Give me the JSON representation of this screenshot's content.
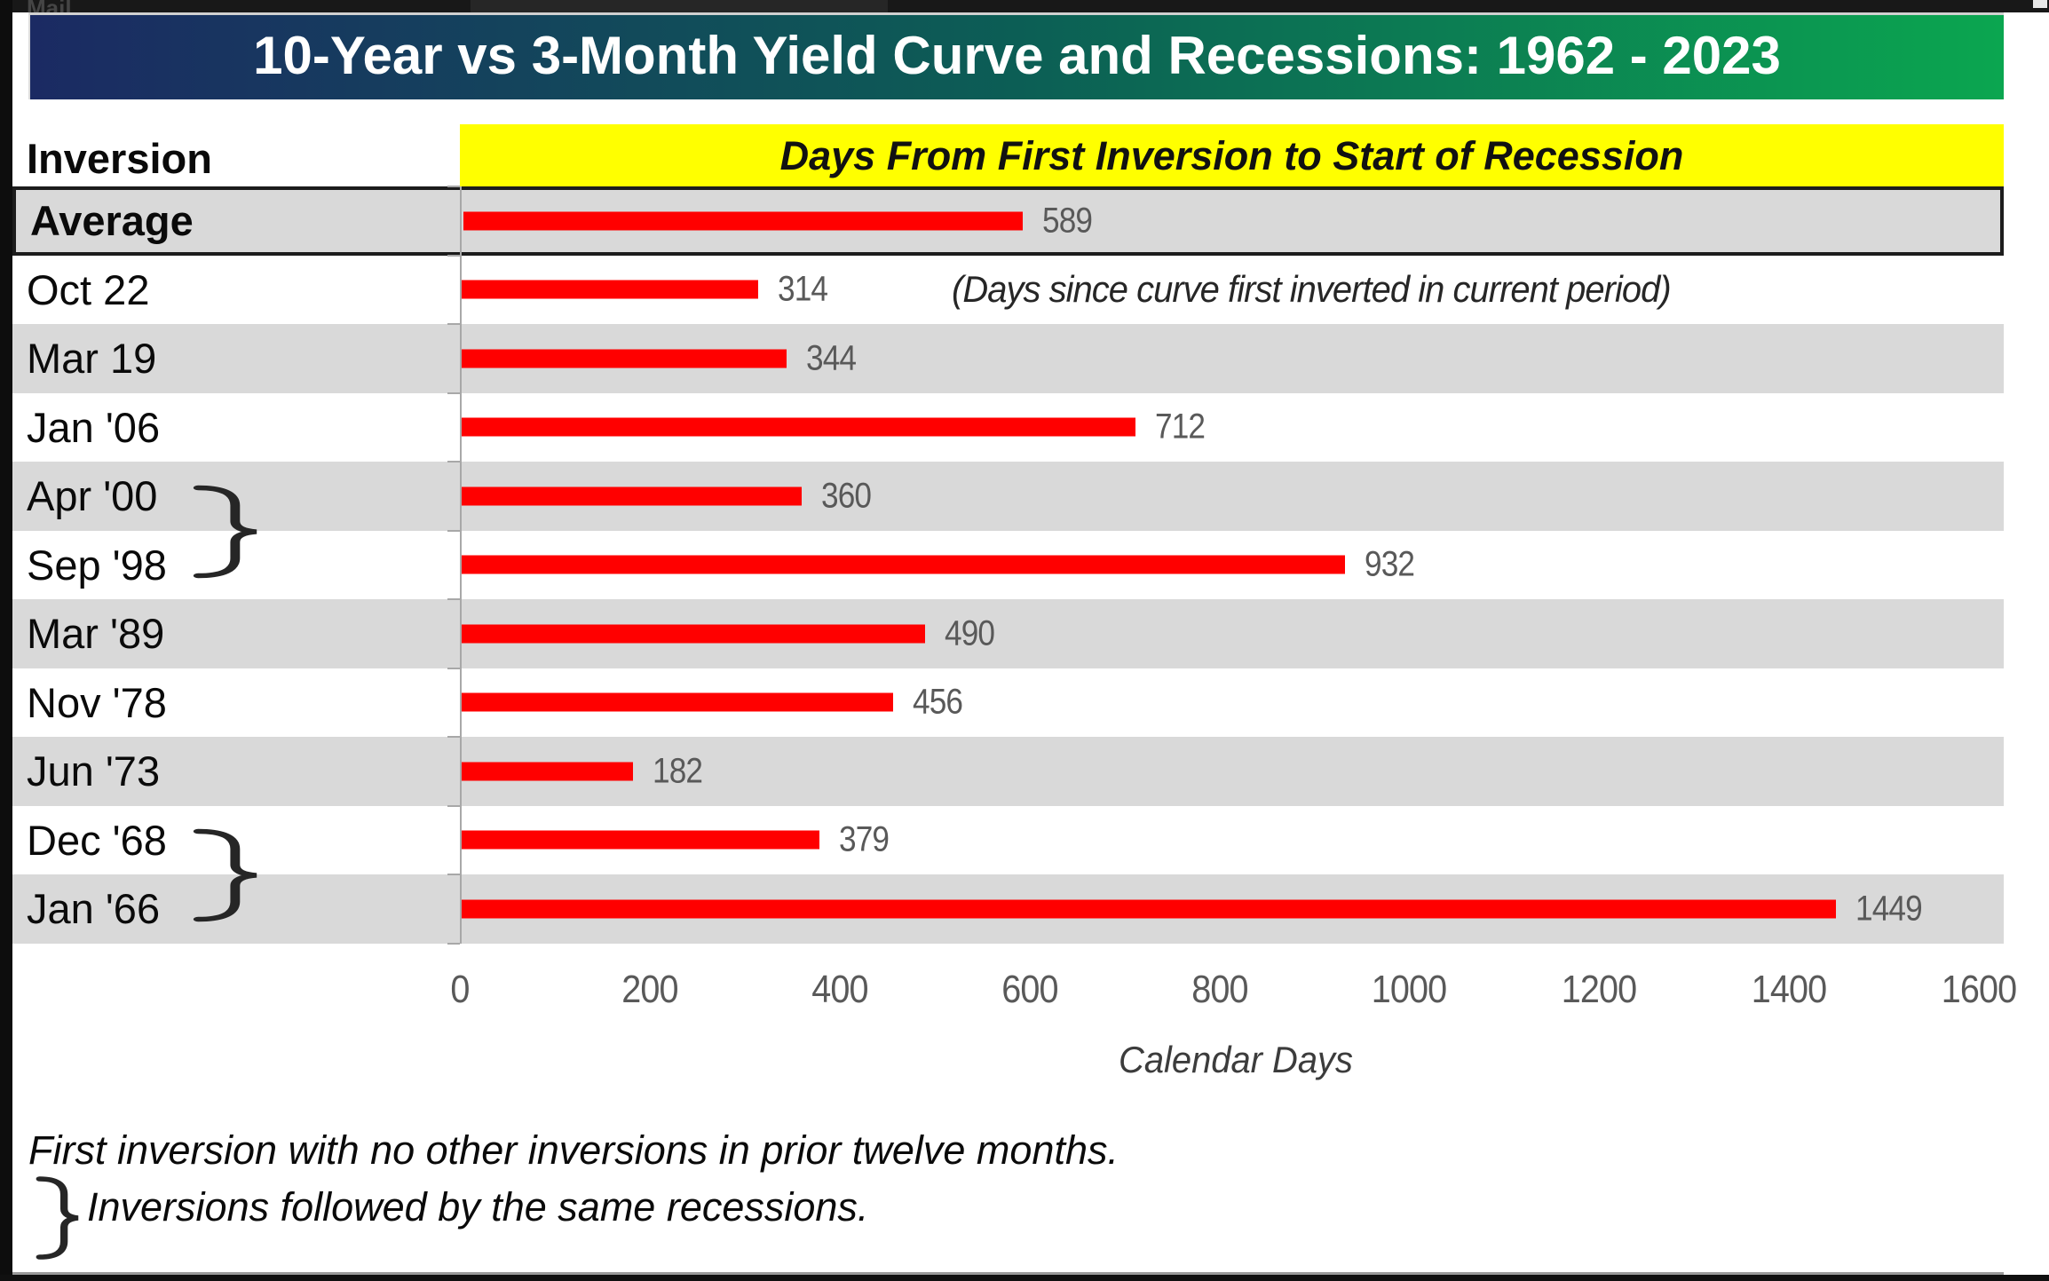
{
  "window": {
    "top_bar_text": "Mail"
  },
  "header": {
    "title": "10-Year vs 3-Month Yield Curve and Recessions: 1962 - 2023"
  },
  "table": {
    "inversion_header": "Inversion",
    "days_header": "Days From First Inversion to Start of Recession"
  },
  "chart_data": {
    "type": "bar",
    "orientation": "horizontal",
    "title": "Days From First Inversion to Start of Recession",
    "categories": [
      "Average",
      "Oct 22",
      "Mar 19",
      "Jan '06",
      "Apr '00",
      "Sep '98",
      "Mar '89",
      "Nov '78",
      "Jun '73",
      "Dec '68",
      "Jan '66"
    ],
    "values": [
      589,
      314,
      344,
      712,
      360,
      932,
      490,
      456,
      182,
      379,
      1449
    ],
    "annotation": "(Days since curve first inverted in current period)",
    "annotation_row": "Oct 22",
    "xlabel": "Calendar Days",
    "x_ticks": [
      0,
      200,
      400,
      600,
      800,
      1000,
      1200,
      1400,
      1600
    ],
    "xlim": [
      0,
      1600
    ],
    "highlight_row": "Average",
    "linked_pairs": [
      [
        "Apr '00",
        "Sep '98"
      ],
      [
        "Dec '68",
        "Jan '66"
      ]
    ],
    "bar_color": "#ff0000",
    "stripe_color": "#d9d9d9",
    "value_label_color": "#595959",
    "title_gradient": [
      "#1b2a63",
      "#0c5e55",
      "#0ba650"
    ],
    "banner_color": "#ffff00",
    "grid": false,
    "legend": false
  },
  "footnotes": {
    "line1": "First inversion with no other inversions in prior twelve months.",
    "line2": "Inversions followed by the same recessions."
  }
}
